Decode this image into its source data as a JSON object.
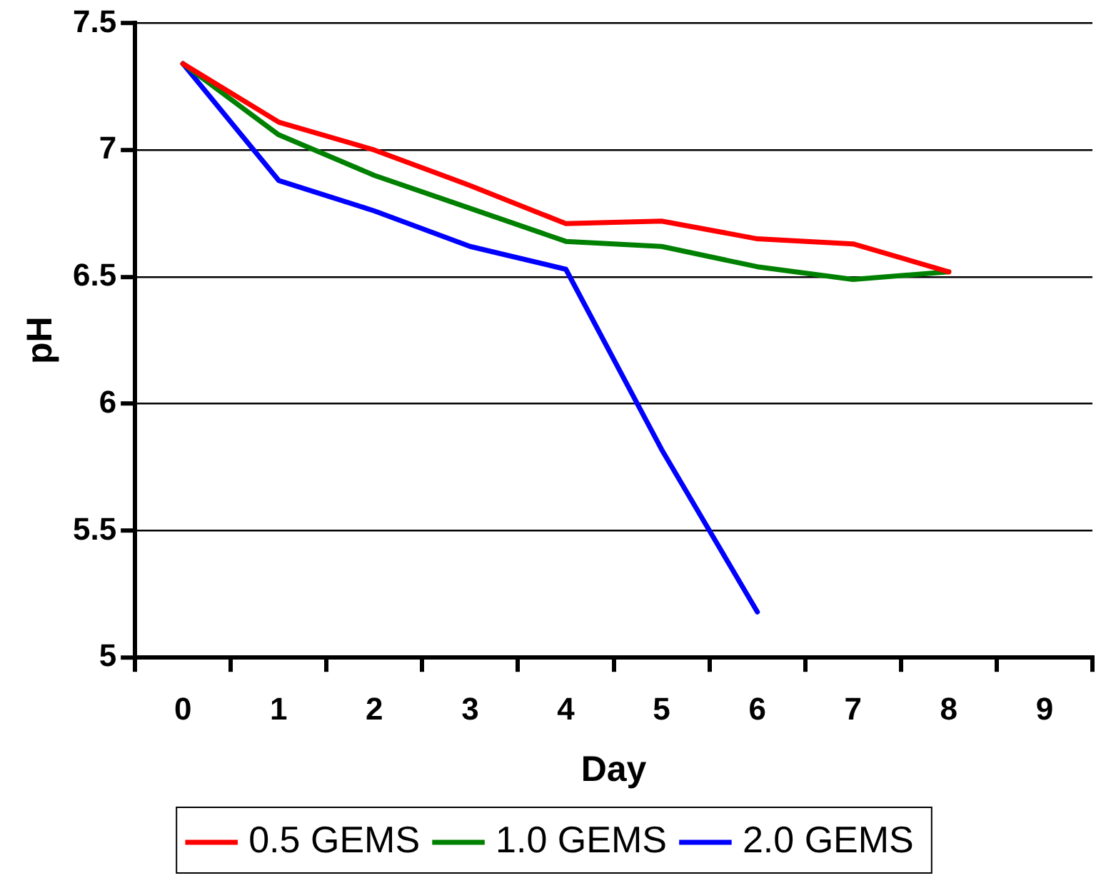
{
  "chart_data": {
    "type": "line",
    "xlabel": "Day",
    "ylabel": "pH",
    "categories": [
      "0",
      "1",
      "2",
      "3",
      "4",
      "5",
      "6",
      "7",
      "8",
      "9"
    ],
    "ylim": [
      5,
      7.5
    ],
    "yticks": [
      5,
      5.5,
      6,
      6.5,
      7,
      7.5
    ],
    "grid": "y",
    "legend": "bottom",
    "marker": "none",
    "line_style": "solid",
    "series": [
      {
        "name": "0.5 GEMS",
        "color": "#ff0000",
        "values": [
          7.34,
          7.11,
          7.0,
          6.86,
          6.71,
          6.72,
          6.65,
          6.63,
          6.52,
          null
        ]
      },
      {
        "name": "1.0 GEMS",
        "color": "#008000",
        "values": [
          7.34,
          7.06,
          6.9,
          6.77,
          6.64,
          6.62,
          6.54,
          6.49,
          6.52,
          null
        ]
      },
      {
        "name": "2.0 GEMS",
        "color": "#0000ff",
        "values": [
          7.34,
          6.88,
          6.76,
          6.62,
          6.53,
          5.82,
          5.18,
          null,
          null,
          null
        ]
      }
    ]
  }
}
